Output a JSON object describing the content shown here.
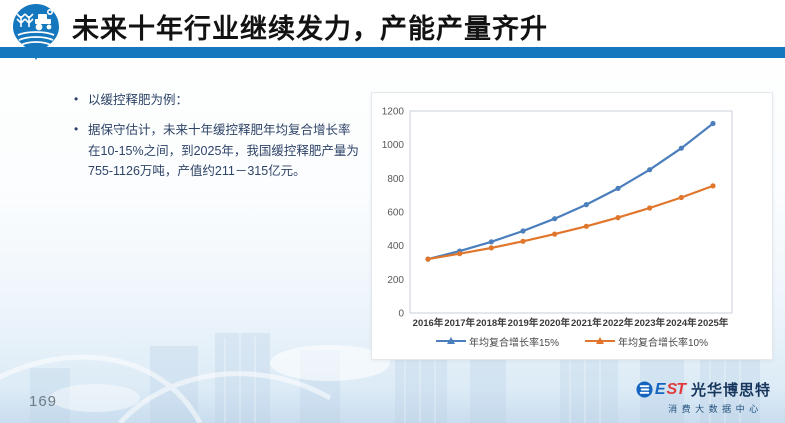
{
  "header": {
    "title": "未来十年行业继续发力，产能产量齐升",
    "bar_color": "#1577BE",
    "logo_icon": "farm-pin-icon"
  },
  "bullets": [
    "以缓控释肥为例：",
    "据保守估计，未来十年缓控释肥年均复合增长率在10-15%之间，到2025年，我国缓控释肥产量为755-1126万吨，产值约211－315亿元。"
  ],
  "chart_data": {
    "type": "line",
    "title": "",
    "xlabel": "",
    "ylabel": "",
    "categories": [
      "2016年",
      "2017年",
      "2018年",
      "2019年",
      "2020年",
      "2021年",
      "2022年",
      "2023年",
      "2024年",
      "2025年"
    ],
    "series": [
      {
        "name": "年均复合增长率15%",
        "color": "#4A7EBC",
        "values": [
          320,
          368,
          423,
          487,
          560,
          644,
          740,
          851,
          979,
          1126
        ]
      },
      {
        "name": "年均复合增长率10%",
        "color": "#E0762C",
        "values": [
          320,
          352,
          387,
          426,
          469,
          515,
          567,
          624,
          686,
          755
        ]
      }
    ],
    "ylim": [
      0,
      1200
    ],
    "ytick_step": 200,
    "grid": false,
    "legend_position": "bottom"
  },
  "footer": {
    "page_number": "169",
    "brand": {
      "icon": "best-b-circle-icon",
      "latin_blue": "E",
      "latin_red": "ST",
      "name_cn": "光华博思特",
      "subtitle": "消费大数据中心",
      "blue": "#1565C0",
      "red": "#E13B3E"
    }
  }
}
